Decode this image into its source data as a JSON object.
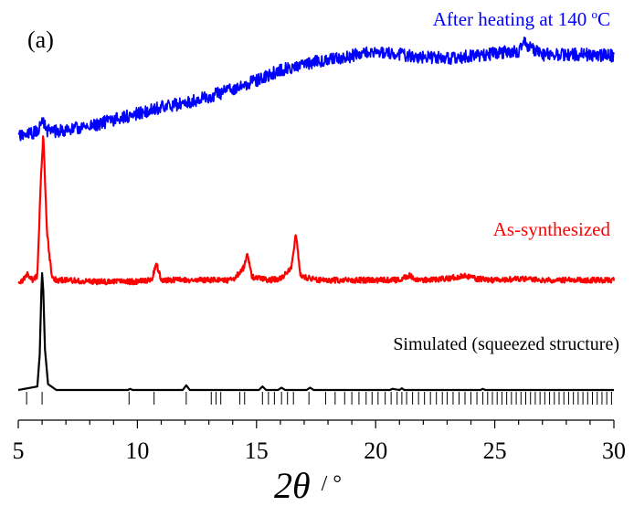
{
  "panel_label": "(a)",
  "chart_data": {
    "type": "line",
    "title": "",
    "xlabel_symbol": "2θ",
    "xlabel_unit": "/ °",
    "xlim": [
      5,
      30
    ],
    "xticks": [
      5,
      10,
      15,
      20,
      25,
      30
    ],
    "ylabel": "",
    "grid": false,
    "legend": "none",
    "series": [
      {
        "name": "After heating at 140 °C",
        "label_parts": [
          "After heating at 140 ",
          "o",
          "C"
        ],
        "color": "#0000ff",
        "x": [
          5.0,
          5.5,
          5.8,
          6.0,
          6.2,
          6.5,
          7.0,
          8.0,
          9.0,
          10.0,
          11.0,
          12.0,
          13.0,
          14.0,
          15.0,
          16.0,
          17.0,
          18.0,
          19.0,
          19.5,
          20.0,
          21.0,
          22.0,
          23.0,
          24.0,
          25.0,
          26.0,
          26.2,
          26.5,
          27.0,
          28.0,
          29.0,
          30.0
        ],
        "y": [
          0.04,
          0.06,
          0.08,
          0.16,
          0.09,
          0.08,
          0.09,
          0.12,
          0.17,
          0.22,
          0.27,
          0.3,
          0.35,
          0.41,
          0.48,
          0.56,
          0.61,
          0.64,
          0.67,
          0.7,
          0.7,
          0.68,
          0.66,
          0.65,
          0.67,
          0.69,
          0.71,
          0.78,
          0.73,
          0.68,
          0.68,
          0.68,
          0.67
        ]
      },
      {
        "name": "As-synthesized",
        "color": "#ff0000",
        "x": [
          5.0,
          5.2,
          5.4,
          5.6,
          5.8,
          5.95,
          6.05,
          6.2,
          6.4,
          6.6,
          7.0,
          8.0,
          9.0,
          10.0,
          10.6,
          10.8,
          11.0,
          12.0,
          13.0,
          14.0,
          14.45,
          14.62,
          14.8,
          15.5,
          16.0,
          16.45,
          16.65,
          16.85,
          17.5,
          18.0,
          19.0,
          20.0,
          21.0,
          21.4,
          21.8,
          23.0,
          23.8,
          24.2,
          25.0,
          26.0,
          27.0,
          28.0,
          29.0,
          30.0
        ],
        "y": [
          0.0,
          0.02,
          0.06,
          0.02,
          0.05,
          0.7,
          1.0,
          0.35,
          0.05,
          0.02,
          0.02,
          0.01,
          0.01,
          0.01,
          0.02,
          0.13,
          0.02,
          0.02,
          0.02,
          0.02,
          0.1,
          0.21,
          0.04,
          0.02,
          0.03,
          0.1,
          0.33,
          0.05,
          0.02,
          0.02,
          0.02,
          0.02,
          0.02,
          0.05,
          0.02,
          0.03,
          0.05,
          0.03,
          0.02,
          0.03,
          0.02,
          0.02,
          0.02,
          0.02
        ]
      },
      {
        "name": "Simulated (squeezed structure)",
        "color": "#000000",
        "x": [
          5.0,
          5.8,
          5.9,
          5.97,
          6.0,
          6.05,
          6.12,
          6.25,
          6.6,
          9.6,
          9.7,
          9.8,
          11.9,
          12.05,
          12.2,
          15.1,
          15.25,
          15.4,
          15.9,
          16.05,
          16.2,
          17.1,
          17.25,
          17.4,
          20.6,
          20.7,
          21.0,
          21.1,
          21.2,
          24.4,
          24.5,
          24.6,
          25.0,
          30.0
        ],
        "y": [
          0.0,
          0.03,
          0.3,
          0.85,
          1.0,
          0.85,
          0.35,
          0.05,
          0.0,
          0.0,
          0.01,
          0.0,
          0.0,
          0.04,
          0.0,
          0.0,
          0.03,
          0.0,
          0.0,
          0.02,
          0.0,
          0.0,
          0.02,
          0.0,
          0.0,
          0.01,
          0.0,
          0.015,
          0.0,
          0.0,
          0.01,
          0.0,
          0.0,
          0.0
        ]
      }
    ],
    "reflection_ticks": [
      5.35,
      6.0,
      9.65,
      10.7,
      12.05,
      13.1,
      13.3,
      13.5,
      14.3,
      14.5,
      15.25,
      15.5,
      15.75,
      16.05,
      16.3,
      16.55,
      17.2,
      17.9,
      18.3,
      18.7,
      19.0,
      19.3,
      19.6,
      19.85,
      20.1,
      20.4,
      20.65,
      20.9,
      21.1,
      21.3,
      21.55,
      21.8,
      22.05,
      22.3,
      22.55,
      22.8,
      23.0,
      23.25,
      23.5,
      23.75,
      24.0,
      24.25,
      24.5,
      24.7,
      24.9,
      25.1,
      25.3,
      25.5,
      25.7,
      25.9,
      26.1,
      26.3,
      26.5,
      26.7,
      26.9,
      27.1,
      27.3,
      27.5,
      27.7,
      27.9,
      28.1,
      28.3,
      28.5,
      28.7,
      28.9,
      29.1,
      29.3,
      29.5,
      29.7,
      29.9
    ]
  }
}
